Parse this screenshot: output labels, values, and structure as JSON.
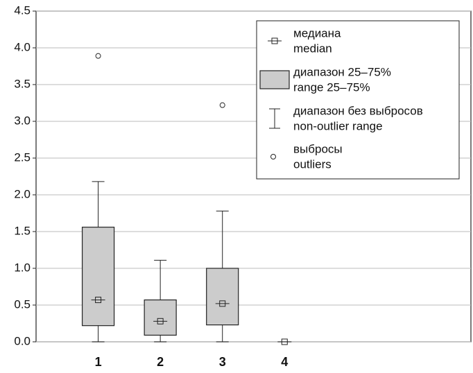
{
  "chart_data": {
    "type": "box",
    "x": [
      1,
      2,
      3,
      4
    ],
    "xlim": [
      0,
      7
    ],
    "ylim": [
      0,
      4.5
    ],
    "yticks": [
      {
        "value": 0,
        "label": "0.0"
      },
      0.5,
      {
        "value": 1,
        "label": "1.0"
      },
      1.5,
      {
        "value": 2,
        "label": "2.0"
      },
      2.5,
      {
        "value": 3,
        "label": "3.0"
      },
      3.5,
      {
        "value": 4,
        "label": "4.0"
      },
      4.5
    ],
    "grid": true,
    "box_color": "#cccccc",
    "boxes": [
      {
        "min": 0,
        "q1": 0.22,
        "median": 0.57,
        "q3": 1.56,
        "max": 2.18,
        "outliers": [
          3.89
        ]
      },
      {
        "min": 0,
        "q1": 0.09,
        "median": 0.28,
        "q3": 0.57,
        "max": 1.11,
        "outliers": []
      },
      {
        "min": 0,
        "q1": 0.23,
        "median": 0.52,
        "q3": 1.0,
        "max": 1.78,
        "outliers": [
          3.22
        ]
      },
      {
        "min": 0,
        "q1": 0,
        "median": 0,
        "q3": 0,
        "max": 0,
        "outliers": []
      }
    ],
    "legend": [
      [
        "медиана",
        "median"
      ],
      [
        "диапазон 25–75%",
        "range 25–75%"
      ],
      [
        "диапазон без выбросов",
        "non-outlier range"
      ],
      [
        "выбросы",
        "outliers"
      ]
    ],
    "legend_position": "upper right"
  }
}
